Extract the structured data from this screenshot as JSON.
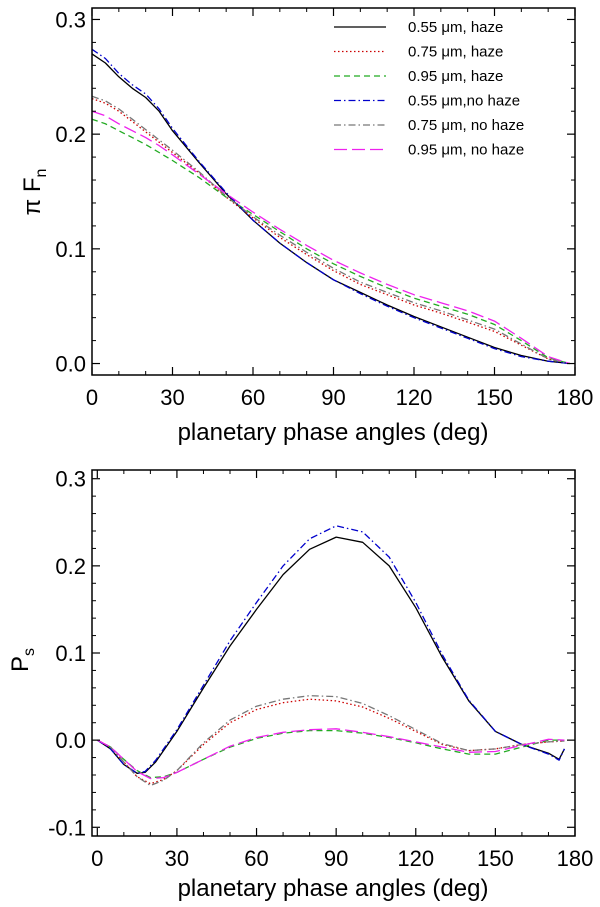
{
  "chart_data": [
    {
      "type": "line",
      "panel": "top",
      "xlabel": "planetary phase angles (deg)",
      "ylabel": {
        "main": "π F",
        "sub": "n"
      },
      "xlim": [
        0,
        180
      ],
      "ylim": [
        -0.01,
        0.31
      ],
      "xticks": [
        0,
        30,
        60,
        90,
        120,
        150,
        180
      ],
      "yticks": [
        0.0,
        0.1,
        0.2,
        0.3
      ],
      "ytick_labels": [
        "0.0",
        "0.1",
        "0.2",
        "0.3"
      ],
      "legend_position": "top-right",
      "series": [
        {
          "name": "0.55 μm, haze",
          "color": "#000000",
          "dash": "",
          "x": [
            0,
            5,
            10,
            15,
            20,
            25,
            30,
            40,
            50,
            60,
            70,
            80,
            90,
            100,
            110,
            120,
            130,
            140,
            150,
            160,
            170,
            178
          ],
          "y": [
            0.27,
            0.262,
            0.25,
            0.24,
            0.232,
            0.22,
            0.203,
            0.175,
            0.148,
            0.125,
            0.105,
            0.088,
            0.073,
            0.062,
            0.051,
            0.041,
            0.032,
            0.023,
            0.014,
            0.007,
            0.002,
            0.0
          ]
        },
        {
          "name": "0.75 μm, haze",
          "color": "#cc0000",
          "dash": "1.5,2.5",
          "x": [
            0,
            5,
            10,
            15,
            20,
            25,
            30,
            40,
            50,
            60,
            70,
            80,
            90,
            100,
            110,
            120,
            130,
            140,
            150,
            160,
            170,
            178
          ],
          "y": [
            0.231,
            0.227,
            0.22,
            0.211,
            0.202,
            0.193,
            0.184,
            0.166,
            0.145,
            0.127,
            0.11,
            0.095,
            0.081,
            0.069,
            0.06,
            0.051,
            0.044,
            0.036,
            0.028,
            0.016,
            0.004,
            0.0
          ]
        },
        {
          "name": "0.95 μm, haze",
          "color": "#22aa22",
          "dash": "6,4",
          "x": [
            0,
            5,
            10,
            15,
            20,
            25,
            30,
            40,
            50,
            60,
            70,
            80,
            90,
            100,
            110,
            120,
            130,
            140,
            150,
            160,
            170,
            178
          ],
          "y": [
            0.213,
            0.209,
            0.203,
            0.197,
            0.191,
            0.184,
            0.177,
            0.162,
            0.145,
            0.13,
            0.115,
            0.1,
            0.087,
            0.076,
            0.066,
            0.057,
            0.05,
            0.043,
            0.034,
            0.02,
            0.005,
            0.0
          ]
        },
        {
          "name": "0.55 μm,no haze",
          "color": "#0000cc",
          "dash": "7,3,1.5,3",
          "x": [
            0,
            5,
            10,
            15,
            20,
            25,
            30,
            40,
            50,
            60,
            70,
            80,
            90,
            100,
            110,
            120,
            130,
            140,
            150,
            160,
            170,
            178
          ],
          "y": [
            0.274,
            0.266,
            0.253,
            0.243,
            0.235,
            0.222,
            0.205,
            0.176,
            0.149,
            0.125,
            0.105,
            0.088,
            0.073,
            0.061,
            0.05,
            0.04,
            0.031,
            0.022,
            0.013,
            0.006,
            0.002,
            0.0
          ]
        },
        {
          "name": "0.75 μm, no haze",
          "color": "#777777",
          "dash": "7,3,1.5,3",
          "x": [
            0,
            5,
            10,
            15,
            20,
            25,
            30,
            40,
            50,
            60,
            70,
            80,
            90,
            100,
            110,
            120,
            130,
            140,
            150,
            160,
            170,
            178
          ],
          "y": [
            0.233,
            0.229,
            0.222,
            0.213,
            0.204,
            0.195,
            0.186,
            0.167,
            0.146,
            0.128,
            0.112,
            0.097,
            0.083,
            0.071,
            0.062,
            0.053,
            0.046,
            0.038,
            0.03,
            0.017,
            0.004,
            0.0
          ]
        },
        {
          "name": "0.95 μm, no haze",
          "color": "#ee22ee",
          "dash": "13,5",
          "x": [
            0,
            5,
            10,
            15,
            20,
            25,
            30,
            40,
            50,
            60,
            70,
            80,
            90,
            100,
            110,
            120,
            130,
            140,
            150,
            160,
            170,
            178
          ],
          "y": [
            0.22,
            0.216,
            0.209,
            0.203,
            0.197,
            0.19,
            0.182,
            0.165,
            0.148,
            0.132,
            0.117,
            0.103,
            0.09,
            0.079,
            0.069,
            0.06,
            0.053,
            0.046,
            0.037,
            0.022,
            0.006,
            0.0
          ]
        }
      ]
    },
    {
      "type": "line",
      "panel": "bottom",
      "xlabel": "planetary phase angles (deg)",
      "ylabel": {
        "main": "P",
        "sub": "s"
      },
      "xlim": [
        -2,
        180
      ],
      "ylim": [
        -0.11,
        0.31
      ],
      "xticks": [
        0,
        30,
        60,
        90,
        120,
        150,
        180
      ],
      "yticks": [
        -0.1,
        0.0,
        0.1,
        0.2,
        0.3
      ],
      "ytick_labels": [
        "-0.1",
        "0.0",
        "0.1",
        "0.2",
        "0.3"
      ],
      "series": [
        {
          "name": "0.55 μm, haze",
          "color": "#000000",
          "dash": "",
          "x": [
            0,
            5,
            10,
            15,
            18,
            22,
            30,
            40,
            50,
            60,
            70,
            80,
            90,
            100,
            110,
            120,
            130,
            140,
            150,
            160,
            170,
            174,
            176
          ],
          "y": [
            0.0,
            -0.01,
            -0.028,
            -0.038,
            -0.037,
            -0.025,
            0.01,
            0.06,
            0.108,
            0.15,
            0.19,
            0.219,
            0.233,
            0.227,
            0.2,
            0.152,
            0.095,
            0.045,
            0.01,
            -0.005,
            -0.015,
            -0.022,
            -0.01
          ]
        },
        {
          "name": "0.75 μm, haze",
          "color": "#cc0000",
          "dash": "1.5,2.5",
          "x": [
            0,
            5,
            10,
            15,
            20,
            25,
            30,
            40,
            50,
            60,
            70,
            80,
            90,
            100,
            110,
            120,
            130,
            140,
            150,
            160,
            170,
            176
          ],
          "y": [
            0.0,
            -0.008,
            -0.025,
            -0.042,
            -0.05,
            -0.045,
            -0.035,
            -0.005,
            0.02,
            0.035,
            0.043,
            0.047,
            0.045,
            0.038,
            0.025,
            0.01,
            -0.005,
            -0.012,
            -0.01,
            -0.005,
            -0.002,
            -0.001
          ]
        },
        {
          "name": "0.95 μm, haze",
          "color": "#22aa22",
          "dash": "6,4",
          "x": [
            0,
            5,
            10,
            15,
            20,
            25,
            30,
            40,
            50,
            60,
            70,
            80,
            90,
            100,
            110,
            120,
            130,
            140,
            150,
            160,
            170,
            176
          ],
          "y": [
            0.0,
            -0.008,
            -0.022,
            -0.035,
            -0.043,
            -0.042,
            -0.037,
            -0.022,
            -0.008,
            0.002,
            0.008,
            0.011,
            0.011,
            0.008,
            0.003,
            -0.003,
            -0.01,
            -0.016,
            -0.016,
            -0.008,
            0.0,
            0.0
          ]
        },
        {
          "name": "0.55 μm,no haze",
          "color": "#0000cc",
          "dash": "7,3,1.5,3",
          "x": [
            0,
            5,
            10,
            15,
            18,
            22,
            30,
            40,
            50,
            60,
            70,
            80,
            90,
            100,
            110,
            120,
            130,
            140,
            150,
            160,
            170,
            174,
            176
          ],
          "y": [
            0.0,
            -0.01,
            -0.028,
            -0.038,
            -0.036,
            -0.023,
            0.012,
            0.063,
            0.114,
            0.158,
            0.2,
            0.231,
            0.246,
            0.239,
            0.21,
            0.158,
            0.098,
            0.046,
            0.01,
            -0.005,
            -0.016,
            -0.023,
            -0.01
          ]
        },
        {
          "name": "0.75 μm, no haze",
          "color": "#777777",
          "dash": "7,3,1.5,3",
          "x": [
            0,
            5,
            10,
            15,
            20,
            25,
            30,
            40,
            50,
            60,
            70,
            80,
            90,
            100,
            110,
            120,
            130,
            140,
            150,
            160,
            170,
            176
          ],
          "y": [
            0.0,
            -0.008,
            -0.025,
            -0.042,
            -0.052,
            -0.046,
            -0.035,
            -0.003,
            0.023,
            0.039,
            0.047,
            0.051,
            0.05,
            0.042,
            0.028,
            0.012,
            -0.004,
            -0.012,
            -0.01,
            -0.005,
            -0.002,
            -0.001
          ]
        },
        {
          "name": "0.95 μm, no haze",
          "color": "#ee22ee",
          "dash": "13,5",
          "x": [
            0,
            5,
            10,
            15,
            20,
            25,
            30,
            40,
            50,
            60,
            70,
            80,
            90,
            100,
            110,
            120,
            130,
            140,
            150,
            160,
            170,
            176
          ],
          "y": [
            0.0,
            -0.008,
            -0.022,
            -0.036,
            -0.044,
            -0.043,
            -0.037,
            -0.022,
            -0.007,
            0.003,
            0.009,
            0.012,
            0.013,
            0.009,
            0.004,
            -0.002,
            -0.008,
            -0.014,
            -0.013,
            -0.006,
            0.001,
            0.0
          ]
        }
      ]
    }
  ]
}
